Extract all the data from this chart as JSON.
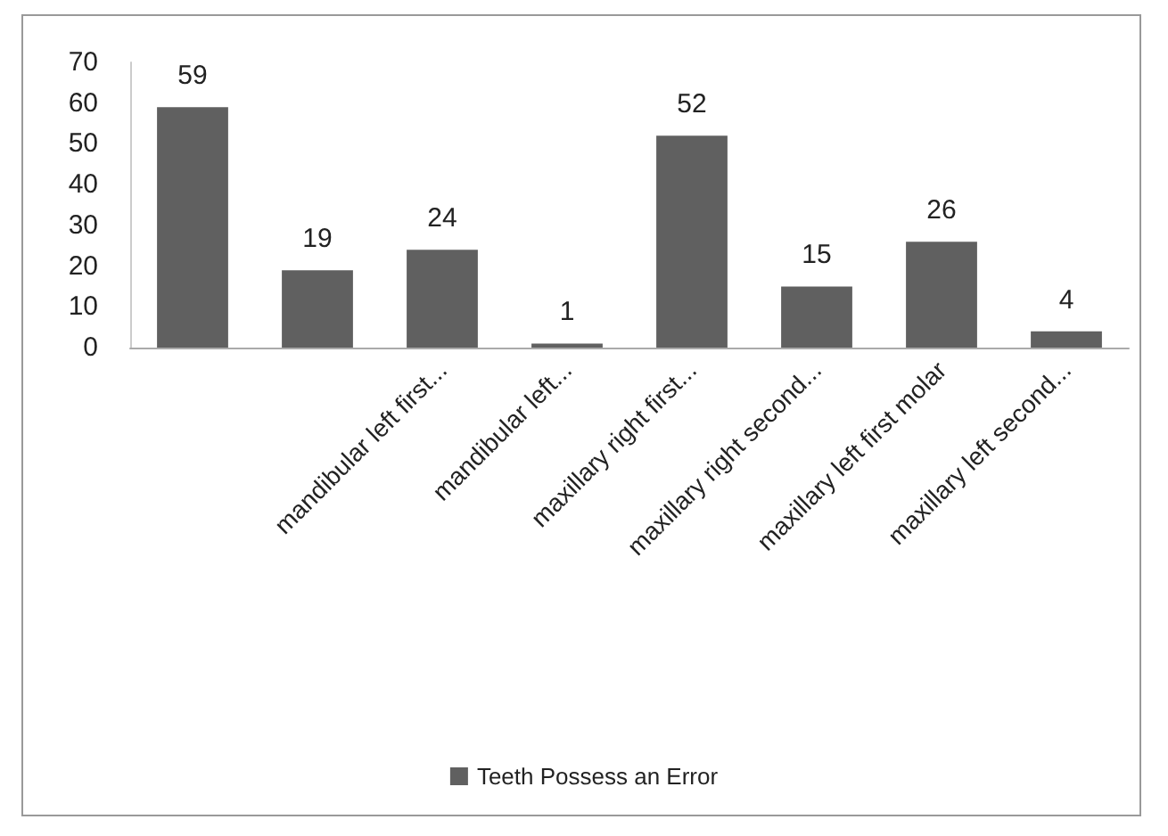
{
  "chart_data": {
    "type": "bar",
    "categories": [
      null,
      null,
      "mandibular left first...",
      "mandibular left...",
      "maxillary right first...",
      "maxillary right second...",
      "maxillary left first molar",
      "maxillary left second..."
    ],
    "series": [
      {
        "name": "Teeth Possess an Error",
        "color": "#606060",
        "values": [
          59,
          19,
          24,
          1,
          52,
          15,
          26,
          4
        ]
      }
    ],
    "ylim": [
      0,
      70
    ],
    "yticks": [
      0,
      10,
      20,
      30,
      40,
      50,
      60,
      70
    ],
    "grid": false,
    "legend": "bottom",
    "data_labels": true
  }
}
